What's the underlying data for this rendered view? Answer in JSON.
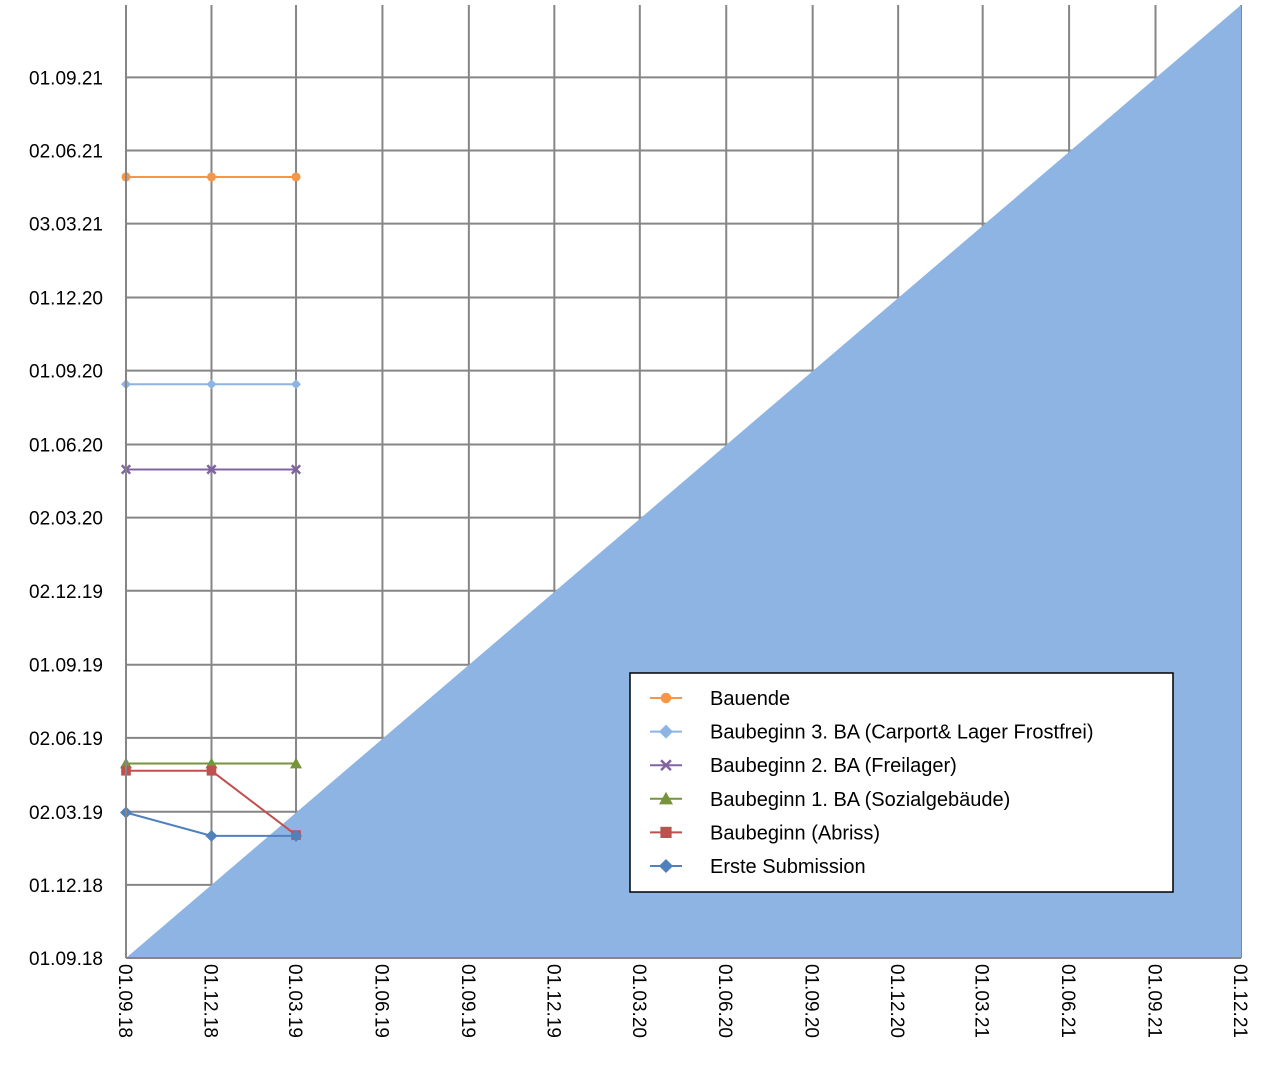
{
  "chart_data": {
    "type": "line",
    "title": "",
    "xlabel": "",
    "ylabel": "",
    "x_tick_labels": [
      "01.09.18",
      "01.12.18",
      "01.03.19",
      "01.06.19",
      "01.09.19",
      "01.12.19",
      "01.03.20",
      "01.06.20",
      "01.09.20",
      "01.12.20",
      "01.03.21",
      "01.06.21",
      "01.09.21",
      "01.12.21"
    ],
    "y_tick_labels": [
      "01.09.18",
      "01.12.18",
      "02.03.19",
      "02.06.19",
      "01.09.19",
      "02.12.19",
      "02.03.20",
      "01.06.20",
      "01.09.20",
      "01.12.20",
      "03.03.21",
      "02.06.21",
      "01.09.21"
    ],
    "x_dates": [
      "2018-09-01",
      "2018-12-01",
      "2019-03-01"
    ],
    "ylim": [
      "2018-09-01",
      "2021-11-30"
    ],
    "xlim": [
      "2018-09-01",
      "2021-12-01"
    ],
    "grid": true,
    "legend_position": "bottom-right",
    "reference_area": {
      "type": "diagonal",
      "color": "#8EB4E3"
    },
    "series": [
      {
        "name": "Bauende",
        "color": "#F79646",
        "marker": "circle",
        "values": [
          "2021-04-30",
          "2021-04-30",
          "2021-04-30"
        ]
      },
      {
        "name": "Baubeginn 3. BA (Carport& Lager Frostfrei)",
        "color": "#8EB4E3",
        "marker": "diamond",
        "values": [
          "2020-08-15",
          "2020-08-15",
          "2020-08-15"
        ]
      },
      {
        "name": "Baubeginn 2. BA (Freilager)",
        "color": "#8064A2",
        "marker": "x",
        "values": [
          "2020-05-01",
          "2020-05-01",
          "2020-05-01"
        ]
      },
      {
        "name": "Baubeginn 1. BA (Sozialgebäude)",
        "color": "#77933C",
        "marker": "triangle",
        "values": [
          "2019-05-01",
          "2019-05-01",
          "2019-05-01"
        ]
      },
      {
        "name": "Baubeginn (Abriss)",
        "color": "#C0504D",
        "marker": "square",
        "values": [
          "2019-04-22",
          "2019-04-22",
          "2019-02-01"
        ]
      },
      {
        "name": "Erste Submission",
        "color": "#4F81BD",
        "marker": "diamond",
        "values": [
          "2019-03-01",
          "2019-01-31",
          "2019-01-31"
        ]
      }
    ]
  }
}
